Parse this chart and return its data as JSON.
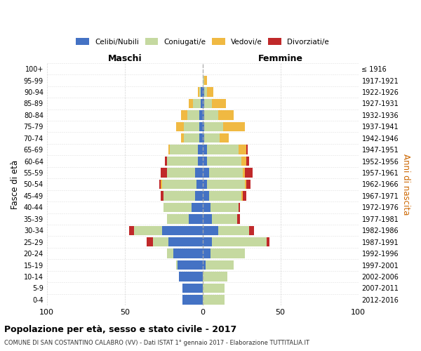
{
  "age_groups": [
    "100+",
    "95-99",
    "90-94",
    "85-89",
    "80-84",
    "75-79",
    "70-74",
    "65-69",
    "60-64",
    "55-59",
    "50-54",
    "45-49",
    "40-44",
    "35-39",
    "30-34",
    "25-29",
    "20-24",
    "15-19",
    "10-14",
    "5-9",
    "0-4"
  ],
  "birth_years": [
    "≤ 1916",
    "1917-1921",
    "1922-1926",
    "1927-1931",
    "1932-1936",
    "1937-1941",
    "1942-1946",
    "1947-1951",
    "1952-1956",
    "1957-1961",
    "1962-1966",
    "1967-1971",
    "1972-1976",
    "1977-1981",
    "1982-1986",
    "1987-1991",
    "1992-1996",
    "1997-2001",
    "2002-2006",
    "2007-2011",
    "2012-2016"
  ],
  "male_celibi": [
    0,
    0,
    1,
    1,
    2,
    2,
    2,
    3,
    3,
    5,
    4,
    5,
    7,
    9,
    26,
    22,
    19,
    16,
    15,
    13,
    13
  ],
  "male_coniugati": [
    0,
    0,
    1,
    5,
    8,
    10,
    10,
    18,
    20,
    18,
    22,
    20,
    18,
    14,
    18,
    10,
    4,
    1,
    0,
    0,
    0
  ],
  "male_vedovi": [
    0,
    0,
    1,
    3,
    4,
    5,
    2,
    1,
    0,
    0,
    1,
    0,
    0,
    0,
    0,
    0,
    0,
    0,
    0,
    0,
    0
  ],
  "male_divorziati": [
    0,
    0,
    0,
    0,
    0,
    0,
    0,
    0,
    1,
    4,
    1,
    2,
    0,
    0,
    3,
    4,
    0,
    0,
    0,
    0,
    0
  ],
  "female_nubili": [
    0,
    0,
    1,
    1,
    1,
    1,
    1,
    3,
    3,
    4,
    3,
    4,
    5,
    6,
    10,
    6,
    5,
    2,
    0,
    0,
    0
  ],
  "female_coniugate": [
    0,
    1,
    2,
    5,
    9,
    12,
    10,
    20,
    22,
    22,
    24,
    21,
    18,
    16,
    20,
    35,
    22,
    18,
    16,
    14,
    14
  ],
  "female_vedove": [
    0,
    2,
    4,
    9,
    10,
    14,
    6,
    5,
    3,
    1,
    1,
    1,
    0,
    0,
    0,
    0,
    0,
    0,
    0,
    0,
    0
  ],
  "female_divorziate": [
    0,
    0,
    0,
    0,
    0,
    0,
    0,
    1,
    2,
    5,
    3,
    2,
    1,
    2,
    3,
    2,
    0,
    0,
    0,
    0,
    0
  ],
  "color_celibi": "#4472c4",
  "color_coniugati": "#c5d9a0",
  "color_vedovi": "#f0b942",
  "color_divorziati": "#c0292a",
  "xlim": 100,
  "title": "Popolazione per età, sesso e stato civile - 2017",
  "subtitle": "COMUNE DI SAN COSTANTINO CALABRO (VV) - Dati ISTAT 1° gennaio 2017 - Elaborazione TUTTITALIA.IT",
  "ylabel": "Fasce di età",
  "ylabel_right": "Anni di nascita",
  "label_maschi": "Maschi",
  "label_femmine": "Femmine",
  "legend_celibi": "Celibi/Nubili",
  "legend_coniugati": "Coniugati/e",
  "legend_vedovi": "Vedovi/e",
  "legend_divorziati": "Divorziati/e",
  "bg_color": "#ffffff",
  "grid_color": "#cccccc"
}
